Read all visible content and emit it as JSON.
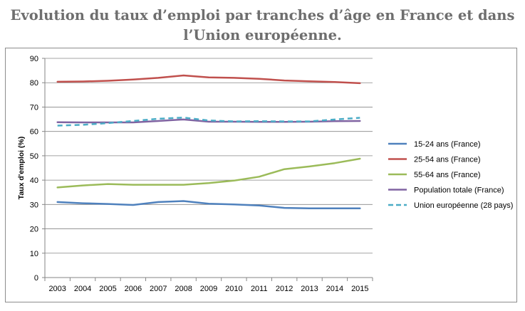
{
  "page": {
    "title_line1": "Evolution du taux d’emploi par tranches d’âge en France et dans",
    "title_line2": "l’Union européenne."
  },
  "chart_data": {
    "type": "line",
    "xlabel": "",
    "ylabel": "Taux d'emploi (%)",
    "ylim": [
      0,
      90
    ],
    "yticks": [
      0,
      10,
      20,
      30,
      40,
      50,
      60,
      70,
      80,
      90
    ],
    "grid": true,
    "legend_position": "right",
    "categories": [
      "2003",
      "2004",
      "2005",
      "2006",
      "2007",
      "2008",
      "2009",
      "2010",
      "2011",
      "2012",
      "2013",
      "2014",
      "2015"
    ],
    "series": [
      {
        "name": "15-24 ans (France)",
        "color": "#4f81bd",
        "dash": false,
        "values": [
          31.0,
          30.5,
          30.2,
          29.8,
          31.0,
          31.4,
          30.3,
          30.0,
          29.6,
          28.6,
          28.4,
          28.4,
          28.4
        ]
      },
      {
        "name": "25-54 ans (France)",
        "color": "#c0504d",
        "dash": false,
        "values": [
          80.4,
          80.5,
          80.8,
          81.3,
          82.0,
          83.0,
          82.2,
          82.0,
          81.6,
          80.9,
          80.6,
          80.3,
          79.8
        ]
      },
      {
        "name": "55-64 ans (France)",
        "color": "#9bbb59",
        "dash": false,
        "values": [
          37.0,
          37.8,
          38.4,
          38.1,
          38.1,
          38.1,
          38.8,
          39.8,
          41.4,
          44.5,
          45.6,
          47.0,
          48.8
        ]
      },
      {
        "name": "Population totale (France)",
        "color": "#8064a2",
        "dash": false,
        "values": [
          63.8,
          63.7,
          63.7,
          63.7,
          64.3,
          64.9,
          64.0,
          64.0,
          63.9,
          63.9,
          64.0,
          64.2,
          64.3
        ]
      },
      {
        "name": "Union européenne (28 pays)",
        "color": "#4bacc6",
        "dash": true,
        "values": [
          62.4,
          62.7,
          63.4,
          64.3,
          65.2,
          65.7,
          64.5,
          64.1,
          64.2,
          64.1,
          64.1,
          64.9,
          65.6
        ]
      }
    ]
  }
}
